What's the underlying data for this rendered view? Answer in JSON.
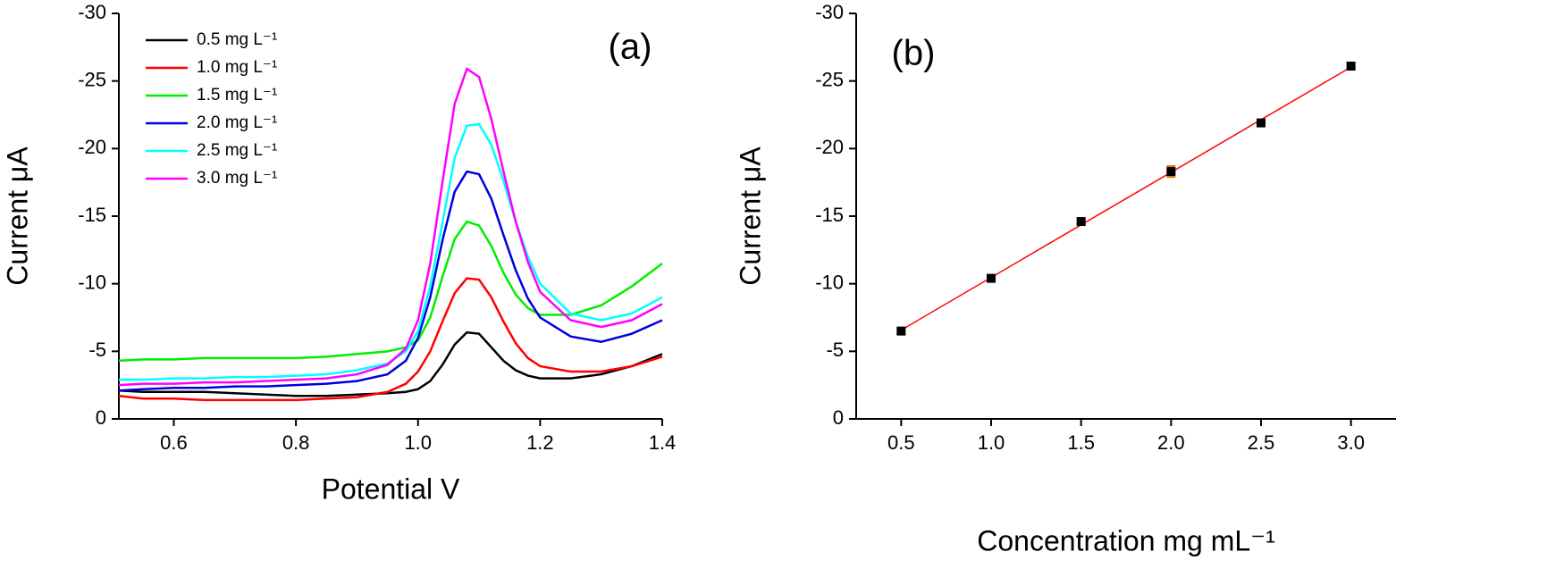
{
  "chart_data": [
    {
      "type": "line",
      "annotation": "(a)",
      "x_label": "Potential V",
      "y_label": "Current μA",
      "xlim": [
        0.51,
        1.4
      ],
      "xticks": [
        0.6,
        0.8,
        {
          "value": 1,
          "label": "1.0"
        },
        1.2,
        1.4
      ],
      "ylim": [
        0,
        -30
      ],
      "yticks": [
        0,
        -5,
        -10,
        -15,
        -20,
        -25,
        -30
      ],
      "legend": "top-left",
      "x": [
        0.51,
        0.55,
        0.6,
        0.65,
        0.7,
        0.75,
        0.8,
        0.85,
        0.9,
        0.95,
        0.98,
        1.0,
        1.02,
        1.04,
        1.06,
        1.08,
        1.1,
        1.12,
        1.14,
        1.16,
        1.18,
        1.2,
        1.25,
        1.3,
        1.35,
        1.4
      ],
      "series": [
        {
          "name": "0.5 mg L⁻¹",
          "color": "#000000",
          "values": [
            -2.1,
            -2.0,
            -2.0,
            -2.0,
            -1.9,
            -1.8,
            -1.7,
            -1.7,
            -1.8,
            -1.9,
            -2.0,
            -2.2,
            -2.8,
            -4.0,
            -5.5,
            -6.4,
            -6.3,
            -5.3,
            -4.3,
            -3.6,
            -3.2,
            -3.0,
            -3.0,
            -3.3,
            -3.9,
            -4.8
          ]
        },
        {
          "name": "1.0 mg L⁻¹",
          "color": "#ff0000",
          "values": [
            -1.7,
            -1.5,
            -1.5,
            -1.4,
            -1.4,
            -1.4,
            -1.4,
            -1.5,
            -1.6,
            -2.0,
            -2.6,
            -3.5,
            -5.0,
            -7.2,
            -9.3,
            -10.4,
            -10.3,
            -9.0,
            -7.2,
            -5.6,
            -4.5,
            -3.9,
            -3.5,
            -3.5,
            -3.9,
            -4.6
          ]
        },
        {
          "name": "1.5 mg L⁻¹",
          "color": "#00ee00",
          "values": [
            -4.3,
            -4.4,
            -4.4,
            -4.5,
            -4.5,
            -4.5,
            -4.5,
            -4.6,
            -4.8,
            -5.0,
            -5.3,
            -5.8,
            -7.5,
            -10.5,
            -13.3,
            -14.6,
            -14.3,
            -12.8,
            -10.8,
            -9.2,
            -8.2,
            -7.7,
            -7.7,
            -8.4,
            -9.8,
            -11.5
          ]
        },
        {
          "name": "2.0 mg L⁻¹",
          "color": "#0000dd",
          "values": [
            -2.1,
            -2.2,
            -2.3,
            -2.3,
            -2.4,
            -2.4,
            -2.5,
            -2.6,
            -2.8,
            -3.3,
            -4.3,
            -6.0,
            -9.0,
            -13.2,
            -16.8,
            -18.3,
            -18.1,
            -16.3,
            -13.6,
            -11.0,
            -8.9,
            -7.5,
            -6.1,
            -5.7,
            -6.3,
            -7.3
          ]
        },
        {
          "name": "2.5 mg L⁻¹",
          "color": "#00ffff",
          "values": [
            -2.9,
            -2.9,
            -3.0,
            -3.0,
            -3.1,
            -3.1,
            -3.2,
            -3.3,
            -3.6,
            -4.1,
            -5.0,
            -6.5,
            -9.8,
            -14.5,
            -19.3,
            -21.7,
            -21.8,
            -20.3,
            -17.6,
            -14.6,
            -12.0,
            -10.0,
            -7.8,
            -7.3,
            -7.8,
            -9.0
          ]
        },
        {
          "name": "3.0 mg L⁻¹",
          "color": "#ff00ff",
          "values": [
            -2.5,
            -2.6,
            -2.6,
            -2.7,
            -2.7,
            -2.8,
            -2.9,
            -3.0,
            -3.3,
            -4.0,
            -5.2,
            -7.3,
            -11.5,
            -17.5,
            -23.3,
            -25.9,
            -25.3,
            -22.2,
            -18.3,
            -14.6,
            -11.6,
            -9.4,
            -7.3,
            -6.8,
            -7.3,
            -8.5
          ]
        }
      ]
    },
    {
      "type": "scatter",
      "annotation": "(b)",
      "x_label": "Concentration mg mL⁻¹",
      "y_label": "Current μA",
      "xlim": [
        0.25,
        3.25
      ],
      "xticks": [
        0.5,
        {
          "value": 1,
          "label": "1.0"
        },
        1.5,
        {
          "value": 2,
          "label": "2.0"
        },
        2.5,
        {
          "value": 3,
          "label": "3.0"
        }
      ],
      "ylim": [
        0,
        -30
      ],
      "yticks": [
        0,
        -5,
        -10,
        -15,
        -20,
        -25,
        -30
      ],
      "x": [
        0.5,
        1,
        1.5,
        2,
        2.5,
        3
      ],
      "values": [
        -6.5,
        -10.4,
        -14.6,
        -18.3,
        -21.9,
        -26.1
      ],
      "errors": [
        0.2,
        0.2,
        0.2,
        0.4,
        0.2,
        0.2
      ],
      "color": "#000000",
      "error_color": "#e07b00",
      "fit_line": true,
      "fit_color": "#ff0000"
    }
  ]
}
